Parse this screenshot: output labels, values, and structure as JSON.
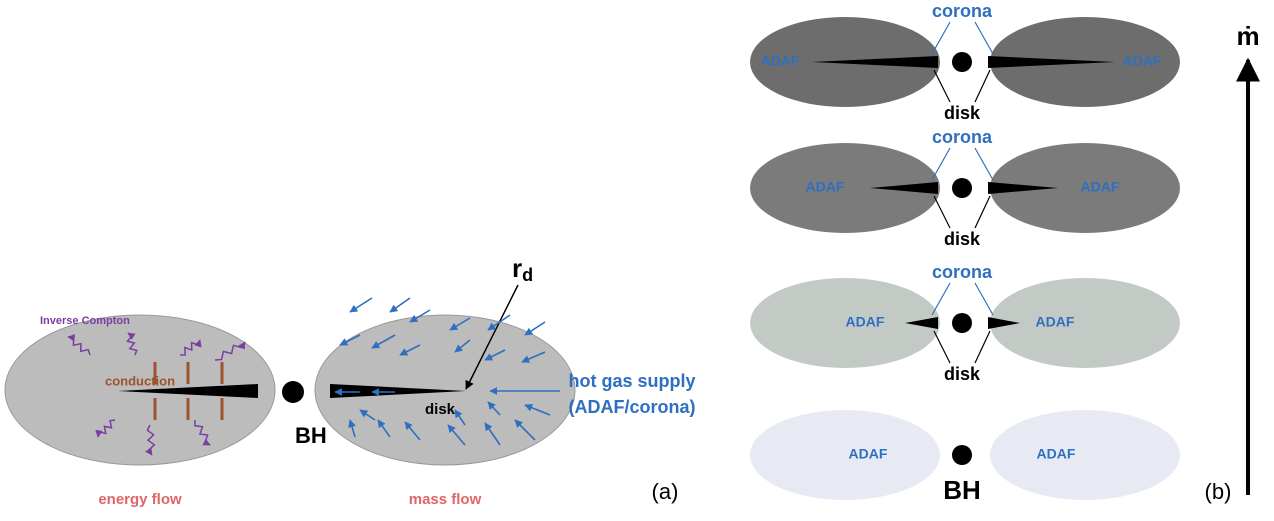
{
  "panel_a": {
    "inverse_compton": "Inverse Compton",
    "conduction": "conduction",
    "bh": "BH",
    "rd": {
      "symbol": "r",
      "subscript": "d"
    },
    "disk": "disk",
    "supply": [
      "hot gas supply",
      "(ADAF/corona)"
    ],
    "energy_flow": "energy flow",
    "mass_flow": "mass flow",
    "label": "(a)"
  },
  "panel_b": {
    "rows": [
      {
        "left": "ADAF",
        "right": "ADAF",
        "corona": "corona",
        "disk": "disk"
      },
      {
        "left": "ADAF",
        "right": "ADAF",
        "corona": "corona",
        "disk": "disk"
      },
      {
        "left": "ADAF",
        "right": "ADAF",
        "corona": "corona",
        "disk": "disk"
      },
      {
        "left": "ADAF",
        "right": "ADAF"
      }
    ],
    "bh": "BH",
    "axis_label": "ṁ",
    "label": "(b)"
  }
}
